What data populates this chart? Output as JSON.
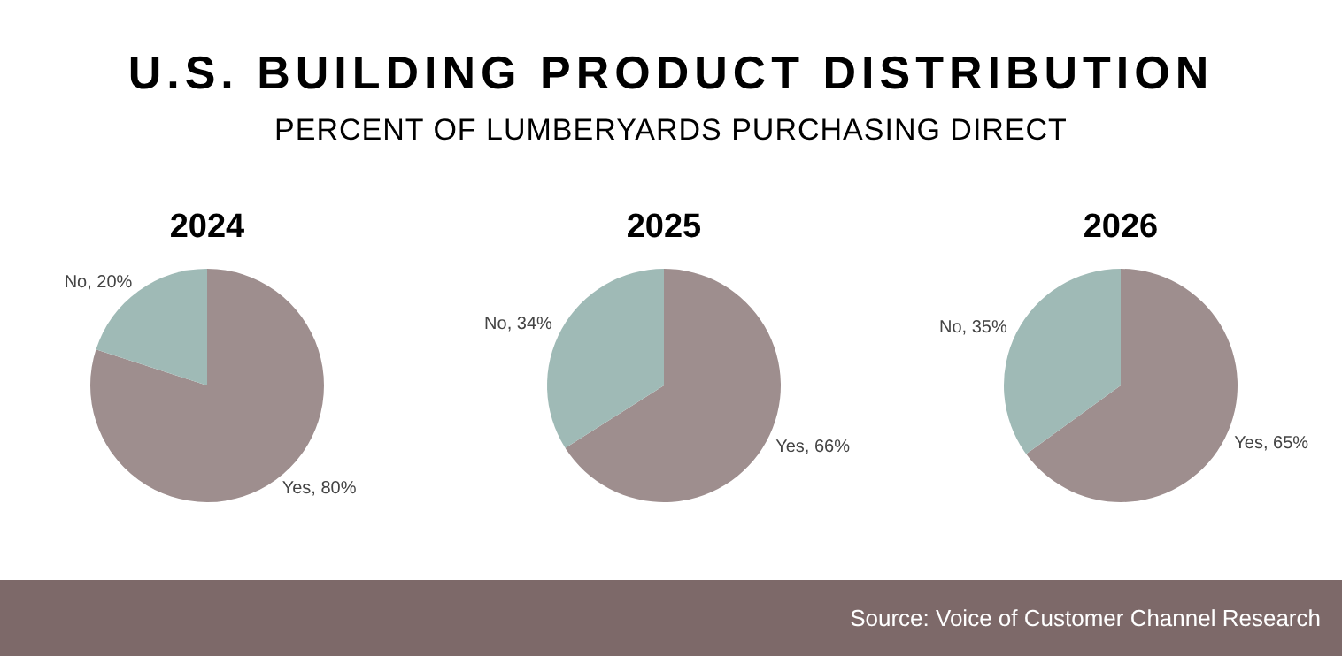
{
  "chart_data": [
    {
      "type": "other",
      "title": "U.S. BUILDING PRODUCT DISTRIBUTION",
      "subtitle": "PERCENT OF LUMBERYARDS PURCHASING DIRECT",
      "annotations": [
        "Source: Voice of Customer Channel Research"
      ]
    },
    {
      "type": "pie",
      "title": "2024",
      "categories": [
        "Yes",
        "No"
      ],
      "values": [
        80,
        20
      ],
      "colors": [
        "#9e8e8e",
        "#9fbab6"
      ],
      "value_labels": [
        ", 80%",
        ", 20%"
      ]
    },
    {
      "type": "pie",
      "title": "2025",
      "categories": [
        "Yes",
        "No"
      ],
      "values": [
        66,
        34
      ],
      "colors": [
        "#9e8e8e",
        "#9fbab6"
      ],
      "value_labels": [
        ", 66%",
        ", 34%"
      ]
    },
    {
      "type": "pie",
      "title": "2026",
      "categories": [
        "Yes",
        "No"
      ],
      "values": [
        65,
        35
      ],
      "colors": [
        "#9e8e8e",
        "#9fbab6"
      ],
      "value_labels": [
        ", 65%",
        ", 35%"
      ]
    }
  ]
}
